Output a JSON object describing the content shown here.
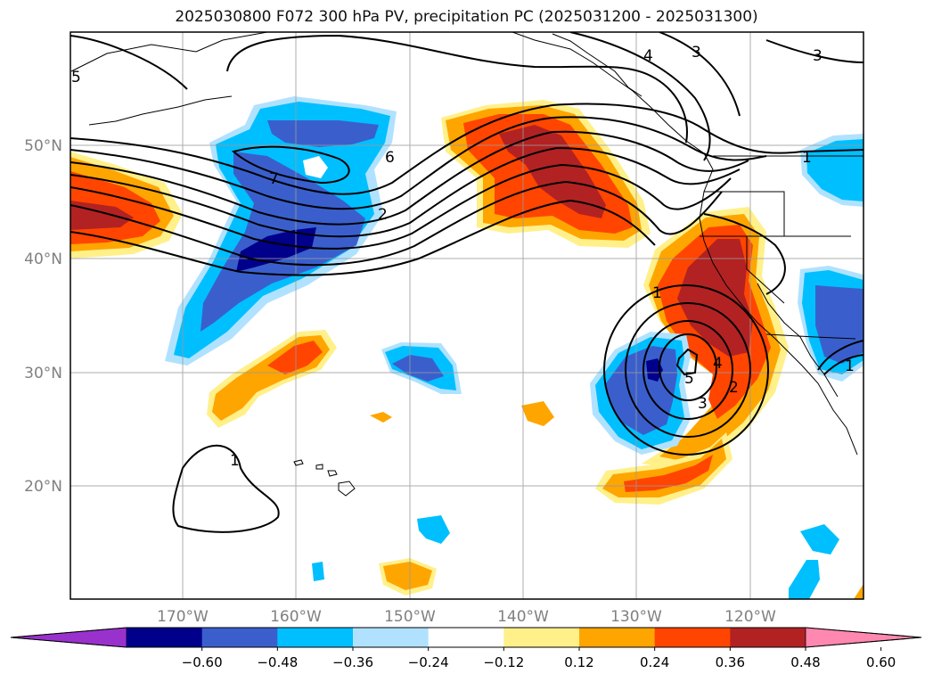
{
  "title": "2025030800 F072 300 hPa PV, precipitation PC (2025031200 - 2025031300)",
  "map": {
    "lat_labels": [
      "50°N",
      "40°N",
      "30°N",
      "20°N"
    ],
    "lon_labels": [
      "170°W",
      "160°W",
      "150°W",
      "140°W",
      "130°W",
      "120°W"
    ],
    "label_color": "#808080",
    "pv_contour_labels": [
      "5",
      "4",
      "3",
      "3",
      "6",
      "7",
      "2",
      "1",
      "1",
      "5",
      "4",
      "3",
      "2",
      "1",
      "1"
    ]
  },
  "colorbar": {
    "extend": "both",
    "colors": [
      "#9932cc",
      "#00008b",
      "#3a5fcd",
      "#00bfff",
      "#b0e2ff",
      "#ffffff",
      "#fff08a",
      "#ffa500",
      "#ff4500",
      "#b22222",
      "#ff88b0"
    ],
    "tick_labels": [
      "−0.60",
      "−0.48",
      "−0.36",
      "−0.24",
      "−0.12",
      "0.12",
      "0.24",
      "0.36",
      "0.48",
      "0.60"
    ]
  }
}
